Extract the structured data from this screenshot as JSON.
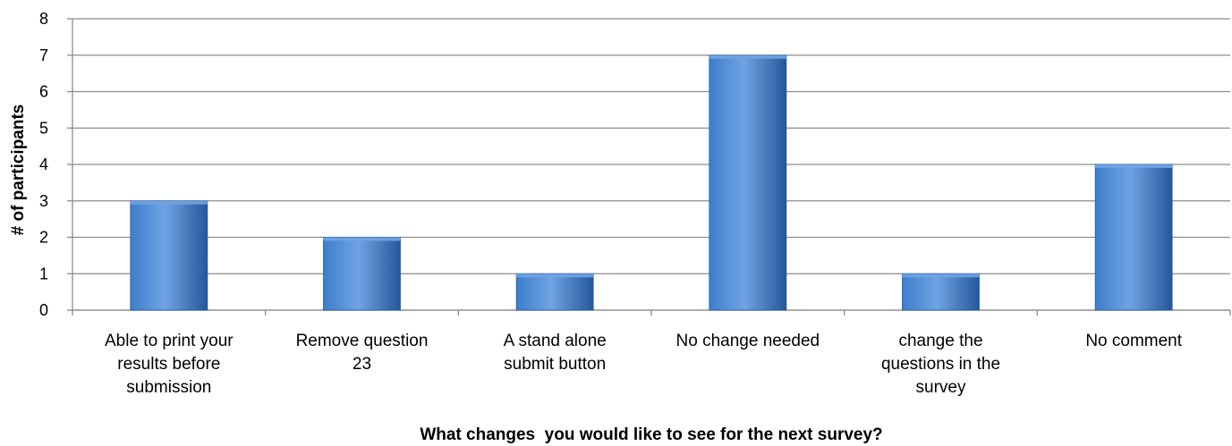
{
  "chart_data": {
    "type": "bar",
    "title": "",
    "xlabel": "What changes  you would like to see for the next survey?",
    "ylabel": "# of participants",
    "categories": [
      [
        "Able to print your",
        "results before",
        "submission"
      ],
      [
        "Remove question",
        "23"
      ],
      [
        "A stand alone",
        "submit button"
      ],
      [
        "No change needed"
      ],
      [
        "change the",
        "questions in the",
        "survey"
      ],
      [
        "No comment"
      ]
    ],
    "values": [
      3,
      2,
      1,
      7,
      1,
      4
    ],
    "ylim": [
      0,
      8
    ],
    "yticks": [
      0,
      1,
      2,
      3,
      4,
      5,
      6,
      7,
      8
    ],
    "grid": true,
    "colors": {
      "bar_light": "#6FA3E4",
      "bar_mid": "#3E7ECB",
      "bar_dark": "#24589A",
      "grid": "#8C8C8C",
      "axis": "#8C8C8C"
    }
  }
}
